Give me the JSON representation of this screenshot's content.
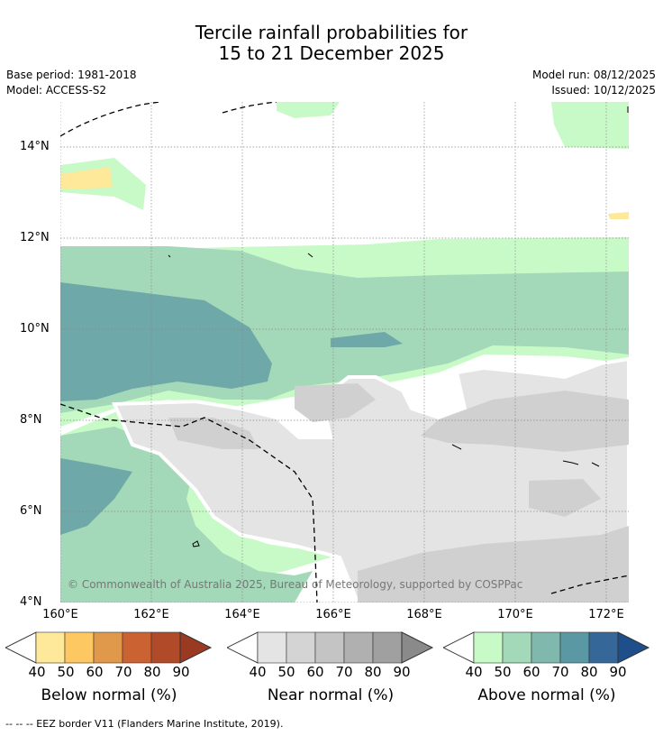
{
  "title": {
    "line1": "Tercile rainfall probabilities for",
    "line2": "15 to 21 December 2025"
  },
  "meta": {
    "base_period": "Base period: 1981-2018",
    "model": "Model: ACCESS-S2",
    "model_run": "Model run: 08/12/2025",
    "issued": "Issued: 10/12/2025"
  },
  "axes": {
    "lat_labels": [
      "14°N",
      "12°N",
      "10°N",
      "8°N",
      "6°N",
      "4°N"
    ],
    "lon_labels": [
      "160°E",
      "162°E",
      "164°E",
      "166°E",
      "168°E",
      "170°E",
      "172°E"
    ]
  },
  "copyright": "© Commonwealth of Australia 2025, Bureau of Meteorology, supported by COSPPac",
  "legend": {
    "below": {
      "title": "Below normal (%)",
      "ticks": [
        "40",
        "50",
        "60",
        "70",
        "80",
        "90"
      ],
      "colors": [
        "#fee89a",
        "#fdc862",
        "#e0984a",
        "#cb6232",
        "#b04a28",
        "#9a3a22"
      ]
    },
    "near": {
      "title": "Near normal (%)",
      "ticks": [
        "40",
        "50",
        "60",
        "70",
        "80",
        "90"
      ],
      "colors": [
        "#e4e4e4",
        "#d4d4d4",
        "#c4c4c4",
        "#b0b0b0",
        "#a0a0a0",
        "#8a8a8a"
      ]
    },
    "above": {
      "title": "Above normal (%)",
      "ticks": [
        "40",
        "50",
        "60",
        "70",
        "80",
        "90"
      ],
      "colors": [
        "#c8fac8",
        "#a3d8b8",
        "#80b8ae",
        "#5a98a4",
        "#356898",
        "#1e4f8a"
      ]
    }
  },
  "footnote": "--  --  -- EEZ border V11 (Flanders Marine Institute, 2019)."
}
